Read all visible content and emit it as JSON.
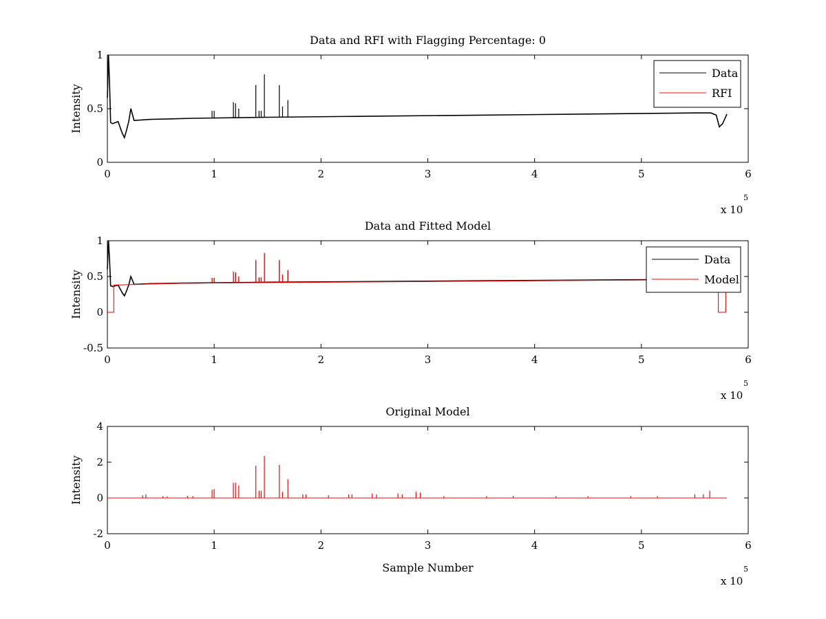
{
  "chart_data": [
    {
      "type": "line",
      "title": "Data and RFI with Flagging Percentage: 0",
      "xlabel": "",
      "ylabel": "Intensity",
      "xlim": [
        0,
        6
      ],
      "ylim": [
        0,
        1
      ],
      "xticks": [
        "0",
        "1",
        "2",
        "3",
        "4",
        "5",
        "6"
      ],
      "yticks": [
        "0",
        "0.5",
        "1"
      ],
      "x_multiplier": "x 10",
      "x_multiplier_exp": "5",
      "grid": false,
      "legend_position": "top-right",
      "series": [
        {
          "name": "Data",
          "color": "#000000",
          "x": [
            0,
            0.01,
            0.02,
            0.03,
            0.05,
            0.1,
            0.14,
            0.16,
            0.18,
            0.2,
            0.22,
            0.25,
            0.4,
            0.8,
            1.5,
            2.5,
            3.5,
            4.5,
            5.5,
            5.65,
            5.7,
            5.73,
            5.76,
            5.8
          ],
          "y": [
            0.6,
            1.0,
            0.75,
            0.37,
            0.36,
            0.38,
            0.27,
            0.23,
            0.3,
            0.38,
            0.5,
            0.39,
            0.4,
            0.41,
            0.42,
            0.43,
            0.44,
            0.45,
            0.46,
            0.46,
            0.44,
            0.33,
            0.36,
            0.45
          ],
          "spikes": [
            {
              "x": 0.98,
              "y": 0.48
            },
            {
              "x": 1.0,
              "y": 0.48
            },
            {
              "x": 1.18,
              "y": 0.56
            },
            {
              "x": 1.2,
              "y": 0.55
            },
            {
              "x": 1.23,
              "y": 0.5
            },
            {
              "x": 1.39,
              "y": 0.72
            },
            {
              "x": 1.42,
              "y": 0.48
            },
            {
              "x": 1.44,
              "y": 0.48
            },
            {
              "x": 1.47,
              "y": 0.82
            },
            {
              "x": 1.61,
              "y": 0.72
            },
            {
              "x": 1.64,
              "y": 0.52
            },
            {
              "x": 1.69,
              "y": 0.58
            }
          ]
        },
        {
          "name": "RFI",
          "color": "#ff0000",
          "x": [],
          "y": []
        }
      ]
    },
    {
      "type": "line",
      "title": "Data and Fitted Model",
      "xlabel": "",
      "ylabel": "Intensity",
      "xlim": [
        0,
        6
      ],
      "ylim": [
        -0.5,
        1
      ],
      "xticks": [
        "0",
        "1",
        "2",
        "3",
        "4",
        "5",
        "6"
      ],
      "yticks": [
        "-0.5",
        "0",
        "0.5",
        "1"
      ],
      "x_multiplier": "x 10",
      "x_multiplier_exp": "5",
      "grid": false,
      "legend_position": "top-right",
      "series": [
        {
          "name": "Data",
          "color": "#000000",
          "x": [
            0,
            0.01,
            0.02,
            0.03,
            0.05,
            0.1,
            0.14,
            0.16,
            0.18,
            0.2,
            0.22,
            0.25,
            0.4,
            0.8,
            1.5,
            2.5,
            3.5,
            4.5,
            5.5,
            5.65,
            5.7,
            5.73,
            5.76,
            5.8
          ],
          "y": [
            0.6,
            1.0,
            0.75,
            0.37,
            0.36,
            0.38,
            0.27,
            0.23,
            0.3,
            0.38,
            0.5,
            0.39,
            0.4,
            0.41,
            0.42,
            0.43,
            0.44,
            0.45,
            0.46,
            0.46,
            0.44,
            0.33,
            0.36,
            0.45
          ],
          "spikes": [
            {
              "x": 0.98,
              "y": 0.48
            },
            {
              "x": 1.0,
              "y": 0.48
            },
            {
              "x": 1.18,
              "y": 0.56
            },
            {
              "x": 1.2,
              "y": 0.55
            },
            {
              "x": 1.23,
              "y": 0.5
            },
            {
              "x": 1.39,
              "y": 0.72
            },
            {
              "x": 1.42,
              "y": 0.48
            },
            {
              "x": 1.44,
              "y": 0.48
            },
            {
              "x": 1.47,
              "y": 0.82
            },
            {
              "x": 1.61,
              "y": 0.72
            },
            {
              "x": 1.64,
              "y": 0.52
            },
            {
              "x": 1.69,
              "y": 0.58
            }
          ]
        },
        {
          "name": "Model",
          "color": "#ff0000",
          "x": [
            0.0,
            0.005,
            0.005,
            0.06,
            0.06,
            0.5,
            1.0,
            2.0,
            3.0,
            4.0,
            5.0,
            5.72,
            5.72,
            5.79,
            5.79
          ],
          "y": [
            0.0,
            0.0,
            0.0,
            0.0,
            0.38,
            0.4,
            0.41,
            0.42,
            0.43,
            0.44,
            0.45,
            0.46,
            0.0,
            0.0,
            0.46
          ],
          "spikes": [
            {
              "x": 0.98,
              "y": 0.48
            },
            {
              "x": 1.0,
              "y": 0.48
            },
            {
              "x": 1.18,
              "y": 0.57
            },
            {
              "x": 1.2,
              "y": 0.56
            },
            {
              "x": 1.23,
              "y": 0.5
            },
            {
              "x": 1.39,
              "y": 0.73
            },
            {
              "x": 1.42,
              "y": 0.49
            },
            {
              "x": 1.44,
              "y": 0.49
            },
            {
              "x": 1.47,
              "y": 0.83
            },
            {
              "x": 1.61,
              "y": 0.73
            },
            {
              "x": 1.64,
              "y": 0.53
            },
            {
              "x": 1.69,
              "y": 0.59
            }
          ]
        }
      ]
    },
    {
      "type": "line",
      "title": "Original Model",
      "xlabel": "Sample Number",
      "ylabel": "Intensity",
      "xlim": [
        0,
        6
      ],
      "ylim": [
        -2,
        4
      ],
      "xticks": [
        "0",
        "1",
        "2",
        "3",
        "4",
        "5",
        "6"
      ],
      "yticks": [
        "-2",
        "0",
        "2",
        "4"
      ],
      "x_multiplier": "x 10",
      "x_multiplier_exp": "5",
      "grid": false,
      "series": [
        {
          "color": "#ff0000",
          "x": [
            0,
            5.8
          ],
          "y": [
            0,
            0
          ],
          "spikes": [
            {
              "x": 0.33,
              "y": 0.15
            },
            {
              "x": 0.36,
              "y": 0.2
            },
            {
              "x": 0.52,
              "y": 0.1
            },
            {
              "x": 0.56,
              "y": 0.08
            },
            {
              "x": 0.75,
              "y": 0.12
            },
            {
              "x": 0.8,
              "y": 0.1
            },
            {
              "x": 0.98,
              "y": 0.45
            },
            {
              "x": 1.0,
              "y": 0.5
            },
            {
              "x": 1.18,
              "y": 0.85
            },
            {
              "x": 1.2,
              "y": 0.85
            },
            {
              "x": 1.23,
              "y": 0.7
            },
            {
              "x": 1.39,
              "y": 1.8
            },
            {
              "x": 1.42,
              "y": 0.4
            },
            {
              "x": 1.44,
              "y": 0.4
            },
            {
              "x": 1.47,
              "y": 2.35
            },
            {
              "x": 1.61,
              "y": 1.85
            },
            {
              "x": 1.64,
              "y": 0.35
            },
            {
              "x": 1.69,
              "y": 1.05
            },
            {
              "x": 1.83,
              "y": 0.2
            },
            {
              "x": 1.86,
              "y": 0.2
            },
            {
              "x": 2.07,
              "y": 0.15
            },
            {
              "x": 2.26,
              "y": 0.2
            },
            {
              "x": 2.29,
              "y": 0.2
            },
            {
              "x": 2.48,
              "y": 0.25
            },
            {
              "x": 2.52,
              "y": 0.2
            },
            {
              "x": 2.72,
              "y": 0.25
            },
            {
              "x": 2.76,
              "y": 0.2
            },
            {
              "x": 2.89,
              "y": 0.35
            },
            {
              "x": 2.93,
              "y": 0.3
            },
            {
              "x": 3.15,
              "y": 0.1
            },
            {
              "x": 3.55,
              "y": 0.1
            },
            {
              "x": 3.8,
              "y": 0.12
            },
            {
              "x": 4.2,
              "y": 0.1
            },
            {
              "x": 4.5,
              "y": 0.1
            },
            {
              "x": 4.9,
              "y": 0.1
            },
            {
              "x": 5.15,
              "y": 0.1
            },
            {
              "x": 5.5,
              "y": 0.2
            },
            {
              "x": 5.58,
              "y": 0.2
            },
            {
              "x": 5.64,
              "y": 0.4
            }
          ]
        }
      ]
    }
  ]
}
